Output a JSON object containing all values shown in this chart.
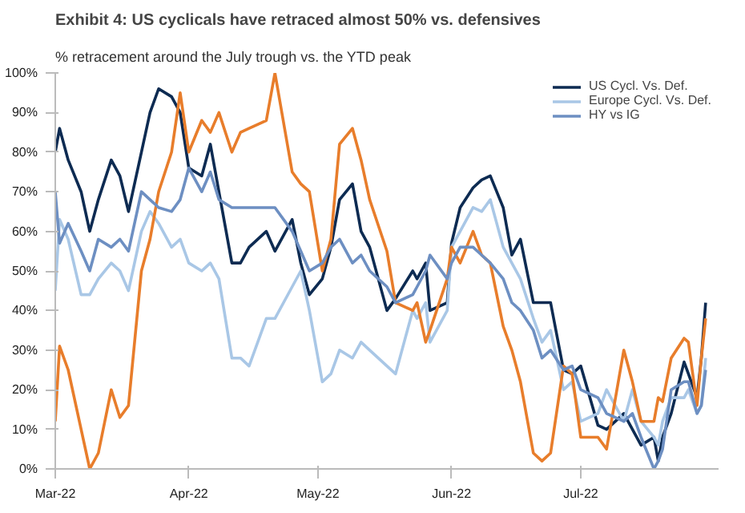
{
  "chart_data": {
    "type": "line",
    "title": "Exhibit 4: US cyclicals have retraced almost 50% vs. defensives",
    "subtitle": "% retracement around the July trough vs. the YTD peak",
    "x": [
      "2022-03-01",
      "2022-03-02",
      "2022-03-04",
      "2022-03-07",
      "2022-03-09",
      "2022-03-11",
      "2022-03-14",
      "2022-03-16",
      "2022-03-18",
      "2022-03-21",
      "2022-03-23",
      "2022-03-25",
      "2022-03-28",
      "2022-03-30",
      "2022-04-01",
      "2022-04-04",
      "2022-04-06",
      "2022-04-08",
      "2022-04-11",
      "2022-04-13",
      "2022-04-15",
      "2022-04-19",
      "2022-04-21",
      "2022-04-25",
      "2022-04-27",
      "2022-04-29",
      "2022-05-02",
      "2022-05-04",
      "2022-05-06",
      "2022-05-09",
      "2022-05-11",
      "2022-05-13",
      "2022-05-17",
      "2022-05-19",
      "2022-05-23",
      "2022-05-24",
      "2022-05-26",
      "2022-05-27",
      "2022-05-31",
      "2022-06-01",
      "2022-06-03",
      "2022-06-06",
      "2022-06-08",
      "2022-06-10",
      "2022-06-13",
      "2022-06-15",
      "2022-06-17",
      "2022-06-20",
      "2022-06-22",
      "2022-06-24",
      "2022-06-27",
      "2022-06-29",
      "2022-07-01",
      "2022-07-05",
      "2022-07-07",
      "2022-07-11",
      "2022-07-13",
      "2022-07-15",
      "2022-07-18",
      "2022-07-19",
      "2022-07-20",
      "2022-07-22",
      "2022-07-25",
      "2022-07-26",
      "2022-07-28",
      "2022-07-29",
      "2022-07-30"
    ],
    "series": [
      {
        "name": "US Cycl. Vs. Def.",
        "color": "#0d2b52",
        "values": [
          80,
          86,
          78,
          70,
          60,
          68,
          78,
          74,
          65,
          80,
          90,
          96,
          94,
          90,
          76,
          74,
          82,
          70,
          52,
          52,
          56,
          60,
          55,
          63,
          52,
          44,
          48,
          56,
          68,
          72,
          60,
          56,
          40,
          43,
          50,
          48,
          52,
          40,
          42,
          57,
          66,
          71,
          73,
          74,
          66,
          54,
          58,
          42,
          42,
          42,
          25,
          24,
          26,
          11,
          10,
          14,
          10,
          6,
          8,
          2,
          8,
          14,
          27,
          24,
          18,
          28,
          42
        ]
      },
      {
        "name": "Europe Cycl. Vs. Def.",
        "color": "#a9c7e6",
        "values": [
          45,
          63,
          58,
          44,
          44,
          48,
          52,
          50,
          45,
          60,
          65,
          62,
          56,
          58,
          52,
          50,
          52,
          48,
          28,
          28,
          26,
          38,
          38,
          46,
          50,
          40,
          22,
          24,
          30,
          28,
          32,
          30,
          26,
          24,
          40,
          38,
          42,
          32,
          40,
          56,
          60,
          66,
          65,
          68,
          56,
          52,
          48,
          38,
          32,
          35,
          20,
          22,
          12,
          14,
          20,
          12,
          20,
          12,
          8,
          6,
          12,
          18,
          18,
          20,
          14,
          16,
          28
        ]
      },
      {
        "color": "#e87d2b",
        "values": [
          12,
          31,
          25,
          10,
          0,
          4,
          20,
          13,
          16,
          50,
          58,
          70,
          80,
          95,
          80,
          88,
          85,
          90,
          80,
          85,
          86,
          88,
          100,
          75,
          72,
          70,
          50,
          58,
          82,
          86,
          78,
          68,
          55,
          42,
          40,
          42,
          32,
          35,
          48,
          56,
          52,
          60,
          54,
          52,
          36,
          30,
          22,
          4,
          2,
          4,
          26,
          24,
          8,
          8,
          5,
          30,
          22,
          12,
          12,
          18,
          17,
          28,
          33,
          32,
          16,
          28,
          38
        ]
      },
      {
        "name": "HY vs IG",
        "color": "#6d8fc2",
        "values": [
          70,
          57,
          62,
          55,
          50,
          58,
          56,
          58,
          55,
          70,
          68,
          66,
          65,
          68,
          76,
          70,
          75,
          68,
          66,
          66,
          66,
          66,
          66,
          60,
          55,
          50,
          52,
          56,
          58,
          52,
          54,
          50,
          46,
          42,
          44,
          46,
          50,
          54,
          48,
          52,
          56,
          56,
          54,
          52,
          48,
          42,
          40,
          35,
          28,
          30,
          25,
          26,
          20,
          18,
          14,
          12,
          14,
          8,
          0,
          2,
          5,
          20,
          22,
          22,
          14,
          16,
          25
        ]
      }
    ],
    "xlim": [
      "2022-03-01",
      "2022-08-02"
    ],
    "xticks": [
      {
        "value": "2022-03-01",
        "label": "Mar-22"
      },
      {
        "value": "2022-04-01",
        "label": "Apr-22"
      },
      {
        "value": "2022-05-01",
        "label": "May-22"
      },
      {
        "value": "2022-06-01",
        "label": "Jun-22"
      },
      {
        "value": "2022-07-01",
        "label": "Jul-22"
      }
    ],
    "ylim": [
      0,
      100
    ],
    "yticks": [
      {
        "value": 0,
        "label": "0%"
      },
      {
        "value": 10,
        "label": "10%"
      },
      {
        "value": 20,
        "label": "20%"
      },
      {
        "value": 30,
        "label": "30%"
      },
      {
        "value": 40,
        "label": "40%"
      },
      {
        "value": 50,
        "label": "50%"
      },
      {
        "value": 60,
        "label": "60%"
      },
      {
        "value": 70,
        "label": "70%"
      },
      {
        "value": 80,
        "label": "80%"
      },
      {
        "value": 90,
        "label": "90%"
      },
      {
        "value": 100,
        "label": "100%"
      }
    ],
    "grid": false,
    "legend": "top right",
    "line_style": "solid"
  }
}
